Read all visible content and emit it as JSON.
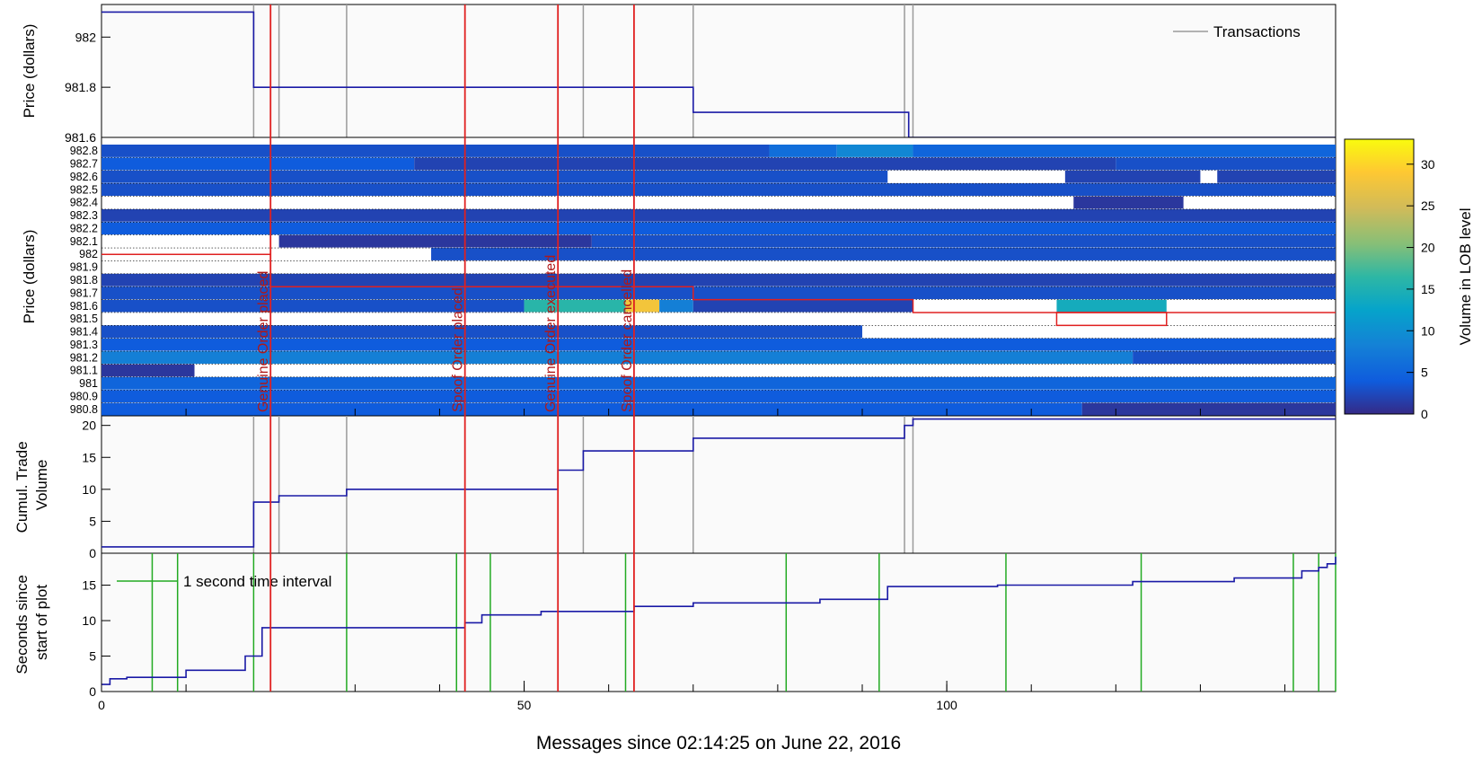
{
  "figure": {
    "xlabel": "Messages since 02:14:25 on June 22, 2016",
    "xlim": [
      0,
      146
    ],
    "x_ticks": [
      0,
      50,
      100
    ],
    "x_ticklabels": [
      "0",
      "50",
      "100"
    ]
  },
  "colors": {
    "series": "#1a1aa6",
    "transactions": "#9a9a9a",
    "events": "#e02020",
    "event_text": "#b01818",
    "interval": "#22aa22",
    "plot_bg": "#fafafa",
    "lob_cell": "#2b4ec3"
  },
  "chart_data": [
    {
      "id": "price",
      "type": "line",
      "step": true,
      "ylabel": "Price (dollars)",
      "ylim": [
        981.6,
        982.13
      ],
      "yticks": [
        981.6,
        981.8,
        982
      ],
      "yticklabels": [
        "981.6",
        "981.8",
        "982"
      ],
      "legend": {
        "label": "Transactions",
        "placement": "top-right"
      },
      "series": [
        {
          "x": [
            0,
            18,
            70,
            95.5,
            146
          ],
          "y": [
            982.1,
            981.8,
            981.7,
            981.6,
            981.6
          ]
        }
      ]
    },
    {
      "id": "lob",
      "type": "heatmap",
      "ylabel": "Price (dollars)",
      "levels": [
        "982.8",
        "982.7",
        "982.6",
        "982.5",
        "982.4",
        "982.3",
        "982.2",
        "982.1",
        "982",
        "981.9",
        "981.8",
        "981.7",
        "981.6",
        "981.5",
        "981.4",
        "981.3",
        "981.2",
        "981.1",
        "981",
        "980.9",
        "980.8"
      ],
      "colorbar": {
        "label": "Volume in LOB level",
        "range": [
          0,
          33
        ],
        "ticks": [
          0,
          5,
          10,
          15,
          20,
          25,
          30
        ],
        "ticklabels": [
          "0",
          "5",
          "10",
          "15",
          "20",
          "25",
          "30"
        ]
      },
      "segments": [
        {
          "level": "982.8",
          "x0": 0,
          "x1": 79,
          "v": 3
        },
        {
          "level": "982.8",
          "x0": 79,
          "x1": 87,
          "v": 6
        },
        {
          "level": "982.8",
          "x0": 87,
          "x1": 96,
          "v": 9
        },
        {
          "level": "982.8",
          "x0": 96,
          "x1": 146,
          "v": 5
        },
        {
          "level": "982.7",
          "x0": 0,
          "x1": 37,
          "v": 4
        },
        {
          "level": "982.7",
          "x0": 37,
          "x1": 120,
          "v": 2
        },
        {
          "level": "982.7",
          "x0": 120,
          "x1": 146,
          "v": 3
        },
        {
          "level": "982.6",
          "x0": 0,
          "x1": 93,
          "v": 3
        },
        {
          "level": "982.6",
          "x0": 93,
          "x1": 114,
          "v": null
        },
        {
          "level": "982.6",
          "x0": 114,
          "x1": 130,
          "v": 2
        },
        {
          "level": "982.6",
          "x0": 130,
          "x1": 132,
          "v": null
        },
        {
          "level": "982.6",
          "x0": 132,
          "x1": 146,
          "v": 2
        },
        {
          "level": "982.5",
          "x0": 0,
          "x1": 146,
          "v": 3
        },
        {
          "level": "982.4",
          "x0": 0,
          "x1": 115,
          "v": null
        },
        {
          "level": "982.4",
          "x0": 115,
          "x1": 128,
          "v": 1
        },
        {
          "level": "982.4",
          "x0": 128,
          "x1": 146,
          "v": null
        },
        {
          "level": "982.3",
          "x0": 0,
          "x1": 146,
          "v": 2
        },
        {
          "level": "982.2",
          "x0": 0,
          "x1": 146,
          "v": 4
        },
        {
          "level": "982.1",
          "x0": 0,
          "x1": 21,
          "v": null
        },
        {
          "level": "982.1",
          "x0": 21,
          "x1": 58,
          "v": 1
        },
        {
          "level": "982.1",
          "x0": 58,
          "x1": 146,
          "v": 3
        },
        {
          "level": "982",
          "x0": 0,
          "x1": 39,
          "v": null
        },
        {
          "level": "982",
          "x0": 39,
          "x1": 146,
          "v": 3
        },
        {
          "level": "981.9",
          "x0": 0,
          "x1": 146,
          "v": null
        },
        {
          "level": "981.8",
          "x0": 0,
          "x1": 146,
          "v": 2
        },
        {
          "level": "981.7",
          "x0": 0,
          "x1": 146,
          "v": 3
        },
        {
          "level": "981.6",
          "x0": 0,
          "x1": 50,
          "v": 3
        },
        {
          "level": "981.6",
          "x0": 50,
          "x1": 62,
          "v": 16
        },
        {
          "level": "981.6",
          "x0": 62,
          "x1": 66,
          "v": 28
        },
        {
          "level": "981.6",
          "x0": 66,
          "x1": 70,
          "v": 8
        },
        {
          "level": "981.6",
          "x0": 70,
          "x1": 96,
          "v": 2
        },
        {
          "level": "981.6",
          "x0": 96,
          "x1": 113,
          "v": null
        },
        {
          "level": "981.6",
          "x0": 113,
          "x1": 126,
          "v": 14
        },
        {
          "level": "981.6",
          "x0": 126,
          "x1": 146,
          "v": null
        },
        {
          "level": "981.5",
          "x0": 0,
          "x1": 146,
          "v": null
        },
        {
          "level": "981.4",
          "x0": 0,
          "x1": 90,
          "v": 3
        },
        {
          "level": "981.4",
          "x0": 90,
          "x1": 146,
          "v": null
        },
        {
          "level": "981.3",
          "x0": 0,
          "x1": 146,
          "v": 4
        },
        {
          "level": "981.2",
          "x0": 0,
          "x1": 122,
          "v": 8
        },
        {
          "level": "981.2",
          "x0": 122,
          "x1": 146,
          "v": 3
        },
        {
          "level": "981.1",
          "x0": 0,
          "x1": 11,
          "v": 1
        },
        {
          "level": "981.1",
          "x0": 11,
          "x1": 146,
          "v": null
        },
        {
          "level": "981",
          "x0": 0,
          "x1": 146,
          "v": 5
        },
        {
          "level": "980.9",
          "x0": 0,
          "x1": 146,
          "v": 4
        },
        {
          "level": "980.8",
          "x0": 0,
          "x1": 116,
          "v": 4
        },
        {
          "level": "980.8",
          "x0": 116,
          "x1": 146,
          "v": 1
        }
      ],
      "ask_path": {
        "x": [
          0,
          20,
          20,
          70,
          70,
          96,
          96,
          146
        ],
        "y": [
          982,
          982,
          981.75,
          981.75,
          981.65,
          981.65,
          981.55,
          981.55
        ]
      },
      "order_box": {
        "x0": 113,
        "x1": 126,
        "y0": 981.55,
        "y1": 981.45
      },
      "events": [
        {
          "x": 20,
          "label": "Genuine Order placed"
        },
        {
          "x": 43,
          "label": "Spoof Order placed"
        },
        {
          "x": 54,
          "label": "Genuine Order executed"
        },
        {
          "x": 63,
          "label": "Spoof Order cancelled"
        }
      ]
    },
    {
      "id": "cumvol",
      "type": "line",
      "step": true,
      "ylabel_lines": [
        "Cumul. Trade",
        "Volume"
      ],
      "ylim": [
        0,
        21.5
      ],
      "yticks": [
        0,
        5,
        10,
        15,
        20
      ],
      "yticklabels": [
        "0",
        "5",
        "10",
        "15",
        "20"
      ],
      "series": [
        {
          "x": [
            0,
            18,
            21,
            29,
            54,
            57,
            70,
            95,
            96,
            146
          ],
          "y": [
            1,
            8,
            9,
            10,
            13,
            16,
            18,
            20,
            21,
            21
          ]
        }
      ]
    },
    {
      "id": "seconds",
      "type": "line",
      "step": true,
      "ylabel_lines": [
        "Seconds since",
        "start of plot"
      ],
      "ylim": [
        0,
        19.5
      ],
      "yticks": [
        0,
        5,
        10,
        15
      ],
      "yticklabels": [
        "0",
        "5",
        "10",
        "15"
      ],
      "legend": {
        "label": "1 second time interval",
        "placement": "top-left"
      },
      "series": [
        {
          "x": [
            0,
            1,
            3,
            10,
            17,
            19,
            43,
            45,
            52,
            63,
            70,
            85,
            93,
            106,
            122,
            134,
            142,
            144,
            145,
            146
          ],
          "y": [
            1,
            1.8,
            2,
            3,
            5,
            9,
            9.7,
            10.8,
            11.3,
            12,
            12.5,
            13,
            14.8,
            15,
            15.5,
            16,
            17,
            17.5,
            18,
            19
          ]
        }
      ],
      "interval_lines": [
        6,
        9,
        18,
        29,
        42,
        46,
        62,
        81,
        92,
        107,
        123,
        141,
        144,
        146
      ]
    }
  ],
  "transactions_x": [
    18,
    21,
    29,
    57,
    70,
    95,
    96
  ]
}
